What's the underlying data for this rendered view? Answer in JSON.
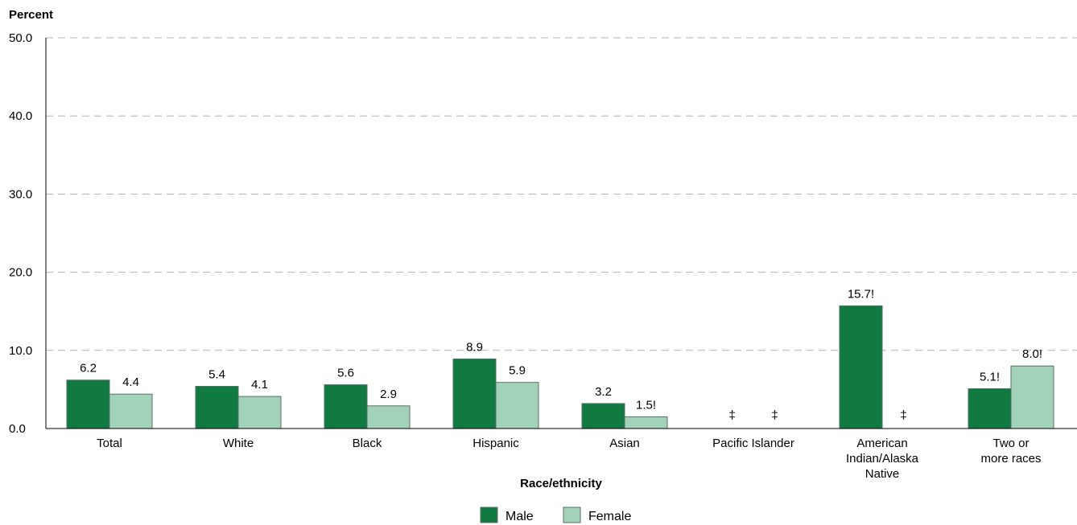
{
  "chart_data": {
    "type": "bar",
    "ylabel": "Percent",
    "xlabel": "Race/ethnicity",
    "ylim": [
      0,
      50
    ],
    "yticks": [
      "0.0",
      "10.0",
      "20.0",
      "30.0",
      "40.0",
      "50.0"
    ],
    "grid": true,
    "legend_position": "bottom",
    "categories": [
      [
        "Total"
      ],
      [
        "White"
      ],
      [
        "Black"
      ],
      [
        "Hispanic"
      ],
      [
        "Asian"
      ],
      [
        "Pacific Islander"
      ],
      [
        "American",
        "Indian/Alaska",
        "Native"
      ],
      [
        "Two or",
        "more races"
      ]
    ],
    "series": [
      {
        "name": "Male",
        "color": "#117a40",
        "values": [
          6.2,
          5.4,
          5.6,
          8.9,
          3.2,
          null,
          15.7,
          5.1
        ],
        "labels": [
          "6.2",
          "5.4",
          "5.6",
          "8.9",
          "3.2",
          "‡",
          "15.7!",
          "5.1!"
        ]
      },
      {
        "name": "Female",
        "color": "#a2d3b9",
        "values": [
          4.4,
          4.1,
          2.9,
          5.9,
          1.5,
          null,
          null,
          8.0
        ],
        "labels": [
          "4.4",
          "4.1",
          "2.9",
          "5.9",
          "1.5!",
          "‡",
          "‡",
          "8.0!"
        ]
      }
    ]
  }
}
